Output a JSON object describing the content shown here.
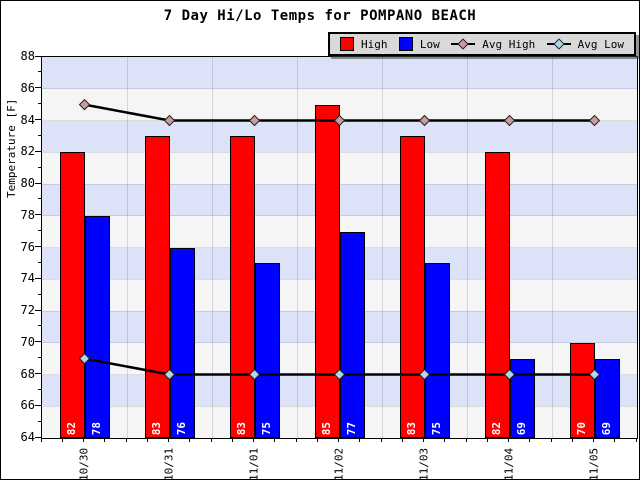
{
  "title": "7 Day Hi/Lo Temps for POMPANO BEACH",
  "y_axis": {
    "label": "Temperature [F]",
    "min": 64,
    "max": 88,
    "major_step": 2,
    "minor_step": 1
  },
  "x_axis": {
    "labels": [
      "10/30",
      "10/31",
      "11/01",
      "11/02",
      "11/03",
      "11/04",
      "11/05"
    ]
  },
  "chart_data": {
    "type": "bar",
    "categories": [
      "10/30",
      "10/31",
      "11/01",
      "11/02",
      "11/03",
      "11/04",
      "11/05"
    ],
    "series": [
      {
        "name": "High",
        "type": "bar",
        "color": "#ff0000",
        "values": [
          82,
          83,
          83,
          85,
          83,
          82,
          70
        ]
      },
      {
        "name": "Low",
        "type": "bar",
        "color": "#0000ff",
        "values": [
          78,
          76,
          75,
          77,
          75,
          69,
          69
        ]
      },
      {
        "name": "Avg High",
        "type": "line",
        "color": "#cc9c9c",
        "values": [
          85,
          84,
          84,
          84,
          84,
          84,
          84
        ]
      },
      {
        "name": "Avg Low",
        "type": "line",
        "color": "#b0d8e8",
        "values": [
          69,
          68,
          68,
          68,
          68,
          68,
          68
        ]
      }
    ],
    "title": "7 Day Hi/Lo Temps for POMPANO BEACH",
    "xlabel": "",
    "ylabel": "Temperature [F]",
    "ylim": [
      64,
      88
    ],
    "bar_value_labels": true,
    "legend_position": "top-right",
    "grid": true
  },
  "colors": {
    "band_blue": "#dce2f8",
    "band_white": "#f5f5f5",
    "avg_line": "#000000",
    "bar_border": "#000000",
    "bar_label_text": "#ffffff",
    "legend_bg": "#d9d9d9",
    "background": "#ffffff"
  }
}
